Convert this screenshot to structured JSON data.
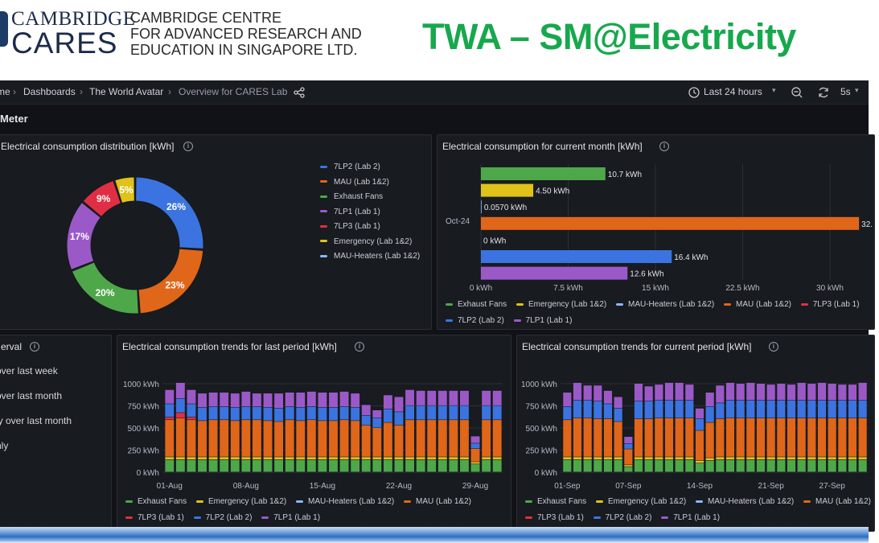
{
  "banner": {
    "logo_top": "CAMBRIDGE",
    "logo_bottom": "CARES",
    "org_lines": [
      "CAMBRIDGE CENTRE",
      "FOR ADVANCED RESEARCH AND",
      "EDUCATION IN SINGAPORE LTD."
    ],
    "title": "TWA – SM@Electricity"
  },
  "topbar": {
    "breadcrumbs": [
      "me",
      "Dashboards",
      "The World Avatar",
      "Overview for CARES Lab"
    ],
    "time_range": "Last 24 hours",
    "refresh_interval": "5s"
  },
  "row_title": "Meter",
  "colors": {
    "7LP2": "#3b74e0",
    "MAU": "#e0661a",
    "Exhaust": "#4ea84a",
    "7LP1": "#9b59c8",
    "7LP3": "#e02f44",
    "Emergency": "#e0c21a",
    "Heaters": "#8ab8ff"
  },
  "donut": {
    "title": "Electrical consumption distribution [kWh]",
    "legend": [
      "7LP2 (Lab 2)",
      "MAU (Lab 1&2)",
      "Exhaust Fans",
      "7LP1 (Lab 1)",
      "7LP3 (Lab 1)",
      "Emergency (Lab 1&2)",
      "MAU-Heaters (Lab 1&2)"
    ],
    "chart_data": {
      "type": "pie",
      "labels": [
        "7LP2 (Lab 2)",
        "MAU (Lab 1&2)",
        "Exhaust Fans",
        "7LP1 (Lab 1)",
        "7LP3 (Lab 1)",
        "Emergency (Lab 1&2)"
      ],
      "values": [
        26,
        23,
        20,
        17,
        9,
        5
      ],
      "label_texts": [
        "26%",
        "23%",
        "20%",
        "17%",
        "9%",
        "5%"
      ]
    }
  },
  "month_bar": {
    "title": "Electrical consumption for current month [kWh]",
    "category": "Oct-24",
    "value_labels": [
      "10.7 kWh",
      "4.50 kWh",
      "0.0570 kWh",
      "32.",
      "0 kWh",
      "16.4 kWh",
      "12.6 kWh"
    ],
    "x_ticks": [
      "0 kWh",
      "7.5 kWh",
      "15 kWh",
      "22.5 kWh",
      "30 kWh"
    ],
    "legend": [
      "Exhaust Fans",
      "Emergency (Lab 1&2)",
      "MAU-Heaters (Lab 1&2)",
      "MAU (Lab 1&2)",
      "7LP3 (Lab 1)",
      "7LP2 (Lab 2)",
      "7LP1 (Lab 1)"
    ],
    "chart_data": {
      "type": "bar",
      "orientation": "horizontal",
      "categories": [
        "Exhaust Fans",
        "Emergency (Lab 1&2)",
        "MAU-Heaters (Lab 1&2)",
        "MAU (Lab 1&2)",
        "7LP3 (Lab 1)",
        "7LP2 (Lab 2)",
        "7LP1 (Lab 1)"
      ],
      "values": [
        10.7,
        4.5,
        0.057,
        32.5,
        0,
        16.4,
        12.6
      ],
      "xlim": [
        0,
        32.5
      ]
    }
  },
  "interval_panel": {
    "title": "erval",
    "options": [
      "over last week",
      "over last month",
      "ly over last month",
      "hly"
    ]
  },
  "trend_last": {
    "title": "Electrical consumption trends for last period [kWh]",
    "y_ticks": [
      "1000 kWh",
      "750 kWh",
      "500 kWh",
      "250 kWh",
      "0 kWh"
    ],
    "x_ticks": [
      "01-Aug",
      "08-Aug",
      "15-Aug",
      "22-Aug",
      "29-Aug"
    ],
    "legend": [
      "Exhaust Fans",
      "Emergency (Lab 1&2)",
      "MAU-Heaters (Lab 1&2)",
      "MAU (Lab 1&2)",
      "7LP3 (Lab 1)",
      "7LP2 (Lab 2)",
      "7LP1 (Lab 1)"
    ],
    "chart_data": {
      "type": "bar",
      "stacked": true,
      "categories": [
        "01-Aug",
        "02-Aug",
        "03-Aug",
        "04-Aug",
        "05-Aug",
        "06-Aug",
        "07-Aug",
        "08-Aug",
        "09-Aug",
        "10-Aug",
        "11-Aug",
        "12-Aug",
        "13-Aug",
        "14-Aug",
        "15-Aug",
        "16-Aug",
        "17-Aug",
        "18-Aug",
        "19-Aug",
        "20-Aug",
        "21-Aug",
        "22-Aug",
        "23-Aug",
        "24-Aug",
        "25-Aug",
        "26-Aug",
        "27-Aug",
        "28-Aug",
        "29-Aug",
        "30-Aug",
        "31-Aug"
      ],
      "ylim": [
        0,
        1000
      ],
      "series": [
        {
          "name": "Exhaust Fans",
          "values": [
            140,
            140,
            140,
            140,
            140,
            140,
            140,
            140,
            140,
            140,
            140,
            140,
            140,
            140,
            140,
            140,
            140,
            140,
            140,
            140,
            140,
            140,
            140,
            140,
            140,
            140,
            140,
            140,
            90,
            140,
            140
          ]
        },
        {
          "name": "Emergency (Lab 1&2)",
          "values": [
            30,
            30,
            30,
            30,
            30,
            30,
            30,
            30,
            30,
            30,
            30,
            30,
            30,
            30,
            30,
            30,
            30,
            30,
            30,
            30,
            30,
            30,
            30,
            30,
            30,
            30,
            30,
            30,
            25,
            30,
            30
          ]
        },
        {
          "name": "MAU (Lab 1&2)",
          "values": [
            420,
            440,
            420,
            410,
            420,
            420,
            410,
            420,
            420,
            410,
            400,
            420,
            410,
            420,
            410,
            410,
            420,
            410,
            360,
            330,
            390,
            360,
            420,
            420,
            420,
            420,
            420,
            420,
            150,
            420,
            420
          ]
        },
        {
          "name": "7LP3 (Lab 1)",
          "values": [
            30,
            60,
            30,
            0,
            0,
            0,
            0,
            0,
            0,
            0,
            0,
            0,
            0,
            0,
            0,
            0,
            0,
            0,
            0,
            0,
            0,
            0,
            0,
            0,
            0,
            0,
            0,
            0,
            0,
            0,
            0
          ]
        },
        {
          "name": "7LP2 (Lab 2)",
          "values": [
            150,
            160,
            150,
            150,
            150,
            150,
            150,
            150,
            150,
            150,
            150,
            150,
            150,
            150,
            150,
            150,
            150,
            150,
            110,
            110,
            150,
            150,
            160,
            160,
            160,
            160,
            160,
            160,
            60,
            160,
            160
          ]
        },
        {
          "name": "7LP1 (Lab 1)",
          "values": [
            160,
            180,
            160,
            160,
            160,
            160,
            160,
            170,
            150,
            160,
            170,
            160,
            170,
            170,
            170,
            170,
            170,
            160,
            120,
            90,
            160,
            170,
            180,
            170,
            170,
            170,
            170,
            170,
            80,
            170,
            170
          ]
        }
      ]
    }
  },
  "trend_current": {
    "title": "Electrical consumption trends for current period [kWh]",
    "y_ticks": [
      "1000 kWh",
      "750 kWh",
      "500 kWh",
      "250 kWh",
      "0 kWh"
    ],
    "x_ticks": [
      "01-Sep",
      "07-Sep",
      "14-Sep",
      "21-Sep",
      "27-Sep"
    ],
    "legend": [
      "Exhaust Fans",
      "Emergency (Lab 1&2)",
      "MAU-Heaters (Lab 1&2)",
      "MAU (Lab 1&2)",
      "7LP3 (Lab 1)",
      "7LP2 (Lab 2)",
      "7LP1 (Lab 1)"
    ],
    "chart_data": {
      "type": "bar",
      "stacked": true,
      "categories": [
        "01-Sep",
        "02-Sep",
        "03-Sep",
        "04-Sep",
        "05-Sep",
        "06-Sep",
        "07-Sep",
        "08-Sep",
        "09-Sep",
        "10-Sep",
        "11-Sep",
        "12-Sep",
        "13-Sep",
        "14-Sep",
        "15-Sep",
        "16-Sep",
        "17-Sep",
        "18-Sep",
        "19-Sep",
        "20-Sep",
        "21-Sep",
        "22-Sep",
        "23-Sep",
        "24-Sep",
        "25-Sep",
        "26-Sep",
        "27-Sep",
        "28-Sep",
        "29-Sep",
        "30-Sep"
      ],
      "ylim": [
        0,
        1000
      ],
      "series": [
        {
          "name": "Exhaust Fans",
          "values": [
            140,
            140,
            140,
            140,
            140,
            140,
            60,
            140,
            140,
            140,
            140,
            140,
            140,
            100,
            130,
            140,
            140,
            140,
            140,
            140,
            140,
            140,
            140,
            140,
            140,
            140,
            140,
            140,
            140,
            140
          ]
        },
        {
          "name": "Emergency (Lab 1&2)",
          "values": [
            30,
            30,
            30,
            30,
            30,
            30,
            20,
            30,
            30,
            30,
            30,
            30,
            30,
            30,
            30,
            30,
            30,
            30,
            30,
            30,
            30,
            30,
            30,
            30,
            30,
            30,
            30,
            30,
            30,
            30
          ]
        },
        {
          "name": "MAU (Lab 1&2)",
          "values": [
            420,
            440,
            440,
            430,
            430,
            400,
            180,
            430,
            430,
            440,
            440,
            440,
            440,
            340,
            400,
            430,
            440,
            440,
            440,
            440,
            440,
            440,
            440,
            440,
            440,
            440,
            440,
            440,
            440,
            440
          ]
        },
        {
          "name": "7LP2 (Lab 2)",
          "values": [
            150,
            200,
            200,
            200,
            170,
            150,
            60,
            200,
            200,
            200,
            200,
            200,
            200,
            130,
            180,
            180,
            200,
            200,
            200,
            200,
            200,
            200,
            200,
            200,
            200,
            200,
            200,
            200,
            200,
            200
          ]
        },
        {
          "name": "7LP1 (Lab 1)",
          "values": [
            160,
            200,
            170,
            180,
            150,
            130,
            80,
            200,
            170,
            180,
            200,
            200,
            180,
            120,
            160,
            200,
            200,
            190,
            200,
            190,
            180,
            190,
            180,
            200,
            190,
            200,
            190,
            180,
            180,
            200
          ]
        }
      ]
    }
  }
}
